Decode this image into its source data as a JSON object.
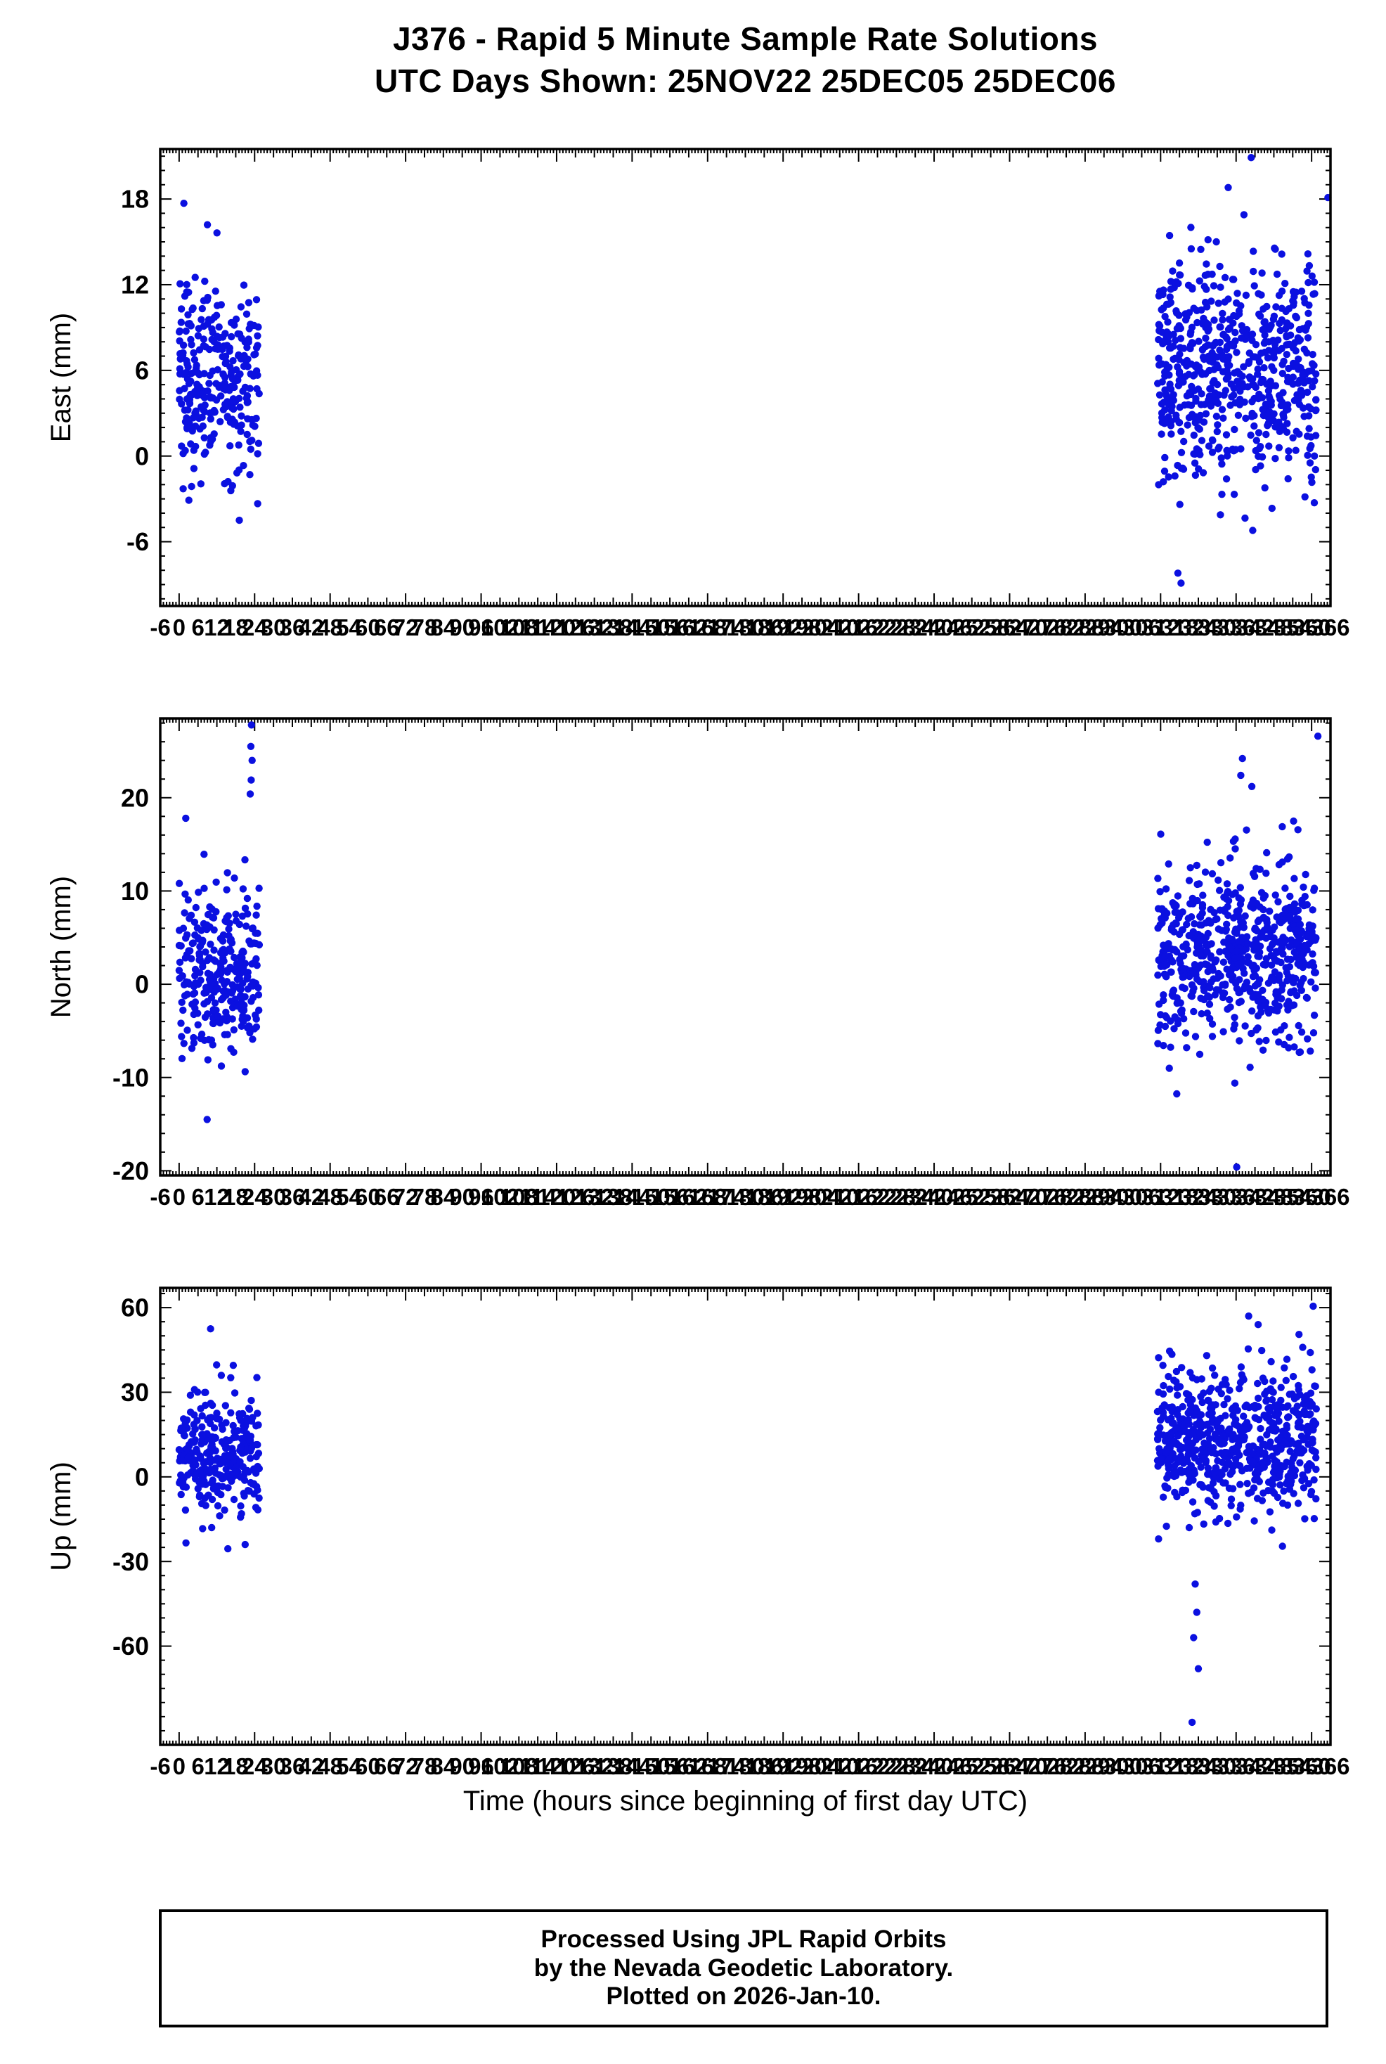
{
  "title": {
    "line1": "J376 - Rapid 5 Minute Sample Rate Solutions",
    "line2": "UTC Days Shown:  25NOV22 25DEC05 25DEC06"
  },
  "footer": {
    "line1": "Processed Using JPL Rapid Orbits",
    "line2": "by the Nevada Geodetic Laboratory.",
    "line3": "Plotted on 2026-Jan-10."
  },
  "chart_data": {
    "type": "scatter",
    "title": "J376 - Rapid 5 Minute Sample Rate Solutions",
    "subtitle": "UTC Days Shown:  25NOV22 25DEC05 25DEC06",
    "point_color": "#0b10e0",
    "x_axis": {
      "label": "Time (hours since beginning of first day UTC)",
      "min": -6,
      "max": 366,
      "tick_label_step": 6,
      "minor_tick_step": 1,
      "day_tick_step": 24
    },
    "panels": [
      {
        "name": "east",
        "ylabel": "East (mm)",
        "ylim": [
          -10.5,
          21.5
        ],
        "yticks": [
          -6,
          0,
          6,
          12,
          18
        ],
        "y_minor_step": 1,
        "clusters": [
          {
            "x_range": [
              0,
              25.5
            ],
            "n": 288,
            "y_mean": 5.3,
            "y_std": 3.3,
            "y_min": -5.6,
            "y_max": 17.6,
            "seed": 11
          },
          {
            "x_range": [
              311,
              361.5
            ],
            "n": 640,
            "y_mean": 6.0,
            "y_std": 3.6,
            "y_min": -9.3,
            "y_max": 16.6,
            "seed": 12
          }
        ],
        "outliers": [
          [
            340.8,
            20.9
          ],
          [
            365.2,
            18.1
          ],
          [
            333.5,
            18.8
          ],
          [
            338.5,
            16.9
          ],
          [
            318.5,
            -8.9
          ],
          [
            317.5,
            -8.2
          ],
          [
            1.5,
            17.7
          ],
          [
            9.0,
            16.2
          ]
        ]
      },
      {
        "name": "north",
        "ylabel": "North (mm)",
        "ylim": [
          -20.5,
          28.5
        ],
        "yticks": [
          -20,
          -10,
          0,
          10,
          20
        ],
        "y_minor_step": 2,
        "clusters": [
          {
            "x_range": [
              0,
              25.5
            ],
            "n": 288,
            "y_mean": 1.8,
            "y_std": 4.6,
            "y_min": -14.6,
            "y_max": 17.9,
            "seed": 21
          },
          {
            "x_range": [
              311,
              361.5
            ],
            "n": 640,
            "y_mean": 3.2,
            "y_std": 4.8,
            "y_min": -12.2,
            "y_max": 20.5,
            "seed": 22
          }
        ],
        "outliers": [
          [
            23.0,
            27.8
          ],
          [
            22.8,
            25.5
          ],
          [
            23.2,
            24.0
          ],
          [
            22.9,
            21.9
          ],
          [
            22.6,
            20.4
          ],
          [
            337.5,
            22.4
          ],
          [
            338.0,
            24.2
          ],
          [
            341.0,
            21.2
          ],
          [
            362.0,
            26.6
          ],
          [
            336.2,
            -19.6
          ],
          [
            8.9,
            -14.5
          ],
          [
            2.1,
            17.8
          ]
        ]
      },
      {
        "name": "up",
        "ylabel": "Up (mm)",
        "ylim": [
          -95,
          67
        ],
        "yticks": [
          -60,
          -30,
          0,
          30,
          60
        ],
        "y_minor_step": 5,
        "clusters": [
          {
            "x_range": [
              0,
              25.5
            ],
            "n": 288,
            "y_mean": 8,
            "y_std": 11,
            "y_min": -26,
            "y_max": 45,
            "seed": 31
          },
          {
            "x_range": [
              311,
              361.5
            ],
            "n": 640,
            "y_mean": 13,
            "y_std": 12,
            "y_min": -30,
            "y_max": 50,
            "seed": 32
          }
        ],
        "outliers": [
          [
            10.0,
            52.5
          ],
          [
            340.0,
            57.0
          ],
          [
            360.5,
            60.5
          ],
          [
            343.0,
            54.0
          ],
          [
            356.0,
            50.5
          ],
          [
            323.0,
            -38.0
          ],
          [
            323.5,
            -48.0
          ],
          [
            322.5,
            -57.0
          ],
          [
            324.0,
            -68.0
          ],
          [
            322.0,
            -87.0
          ],
          [
            15.5,
            -25.5
          ],
          [
            21.0,
            -24.0
          ]
        ]
      }
    ]
  }
}
